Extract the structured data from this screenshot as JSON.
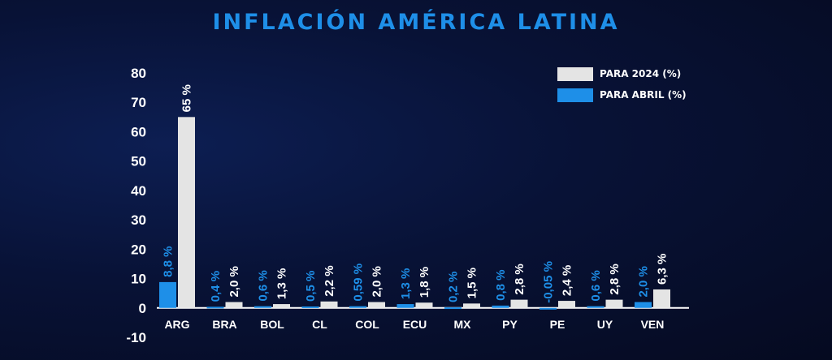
{
  "colors": {
    "series_2024": "#e4e4e4",
    "series_abril": "#1e8fe8",
    "axis_text": "#ffffff",
    "title": "#1e8fe8",
    "background": "#081236"
  },
  "chart_data": {
    "type": "bar",
    "title": "INFLACIÓN AMÉRICA LATINA",
    "xlabel": "",
    "ylabel": "",
    "ylim": [
      -10,
      80
    ],
    "yticks": [
      80,
      70,
      60,
      50,
      40,
      30,
      20,
      10,
      0,
      -10
    ],
    "grid": false,
    "legend_position": "top-right",
    "categories": [
      "ARG",
      "BRA",
      "BOL",
      "CL",
      "COL",
      "ECU",
      "MX",
      "PY",
      "PE",
      "UY",
      "VEN"
    ],
    "series": [
      {
        "name": "PARA ABRIL (%)",
        "values": [
          8.8,
          0.4,
          0.6,
          0.5,
          0.59,
          1.3,
          0.2,
          0.8,
          -0.05,
          0.6,
          2.0
        ],
        "labels": [
          "8,8 %",
          "0,4 %",
          "0,6 %",
          "0,5 %",
          "0,59 %",
          "1,3 %",
          "0,2 %",
          "0,8 %",
          "-0,05 %",
          "0,6 %",
          "2,0 %"
        ]
      },
      {
        "name": "PARA 2024 (%)",
        "values": [
          65,
          2.0,
          1.3,
          2.2,
          2.0,
          1.8,
          1.5,
          2.8,
          2.4,
          2.8,
          6.3
        ],
        "labels": [
          "65 %",
          "2,0 %",
          "1,3 %",
          "2,2 %",
          "2,0 %",
          "1,8 %",
          "1,5 %",
          "2,8 %",
          "2,4 %",
          "2,8 %",
          "6,3 %"
        ]
      }
    ]
  }
}
